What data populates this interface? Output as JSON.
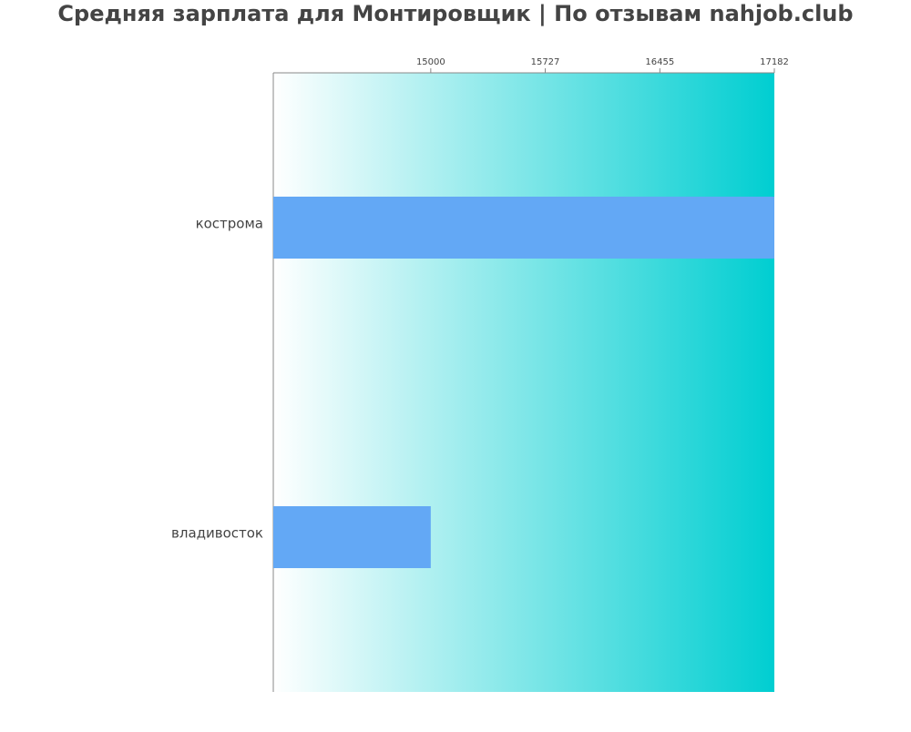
{
  "chart_data": {
    "type": "bar",
    "orientation": "horizontal",
    "title": "Средняя зарплата для Монтировщик | По отзывам nahjob.club",
    "categories": [
      "кострома",
      "владивосток"
    ],
    "values": [
      17182,
      15000
    ],
    "color": "#63a8f5",
    "xlim": [
      14000,
      17182
    ],
    "xticks": [
      15000,
      15727,
      16455,
      17182
    ]
  }
}
